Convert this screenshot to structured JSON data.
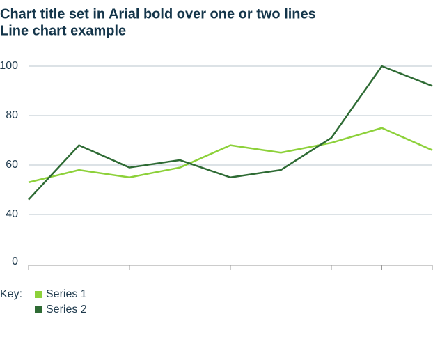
{
  "chart_data": {
    "type": "line",
    "title": "Chart title set in Arial bold over one or two lines",
    "subtitle": "Line chart example",
    "categories": [
      null,
      null,
      null,
      null,
      null,
      null,
      null,
      null,
      null
    ],
    "series": [
      {
        "name": "Series 1",
        "color": "#8dd13a",
        "values": [
          53,
          58,
          55,
          59,
          68,
          65,
          69,
          75,
          66
        ]
      },
      {
        "name": "Series 2",
        "color": "#2e6b34",
        "values": [
          46,
          68,
          59,
          62,
          55,
          58,
          71,
          100,
          92
        ]
      }
    ],
    "ylim": [
      0,
      100
    ],
    "yticks": [
      0,
      40,
      60,
      80,
      100
    ],
    "axis_break": [
      0,
      40
    ],
    "grid": true,
    "legend_title": "Key:",
    "legend": "bottom-left"
  }
}
